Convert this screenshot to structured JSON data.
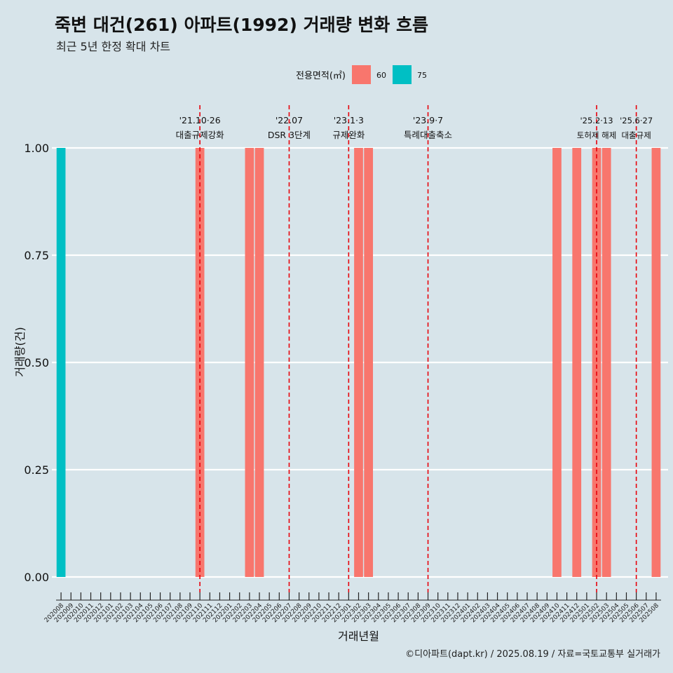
{
  "header": {
    "title": "죽변 대건(261) 아파트(1992) 거래량 변화 흐름",
    "subtitle": "최근 5년 한정 확대 차트"
  },
  "caption": "©디아파트(dapt.kr) / 2025.08.19 / 자료=국토교통부 실거래가",
  "colors": {
    "60": "#f8766d",
    "75": "#00bfc4",
    "background": "#d7e4ea",
    "gridline": "#ffffff",
    "event_line": "#e8000b"
  },
  "chart_data": {
    "type": "bar",
    "xlabel": "거래년월",
    "ylabel": "거래량(건)",
    "ylim": [
      0,
      1
    ],
    "yticks": [
      "0.00",
      "0.25",
      "0.50",
      "0.75",
      "1.00"
    ],
    "grid": true,
    "legend": {
      "title": "전용면적(㎡)",
      "position": "top",
      "entries": [
        "60",
        "75"
      ]
    },
    "categories": [
      "202008",
      "202009",
      "202010",
      "202011",
      "202012",
      "202101",
      "202102",
      "202103",
      "202104",
      "202105",
      "202106",
      "202107",
      "202108",
      "202109",
      "202110",
      "202111",
      "202112",
      "202201",
      "202202",
      "202203",
      "202204",
      "202205",
      "202206",
      "202207",
      "202208",
      "202209",
      "202210",
      "202211",
      "202212",
      "202301",
      "202302",
      "202303",
      "202304",
      "202305",
      "202306",
      "202307",
      "202308",
      "202309",
      "202310",
      "202311",
      "202312",
      "202401",
      "202402",
      "202403",
      "202404",
      "202405",
      "202406",
      "202407",
      "202408",
      "202409",
      "202410",
      "202411",
      "202412",
      "202501",
      "202502",
      "202503",
      "202504",
      "202505",
      "202506",
      "202507",
      "202508"
    ],
    "series": [
      {
        "name": "60",
        "points": [
          {
            "x": "202110",
            "y": 1
          },
          {
            "x": "202203",
            "y": 1
          },
          {
            "x": "202204",
            "y": 1
          },
          {
            "x": "202302",
            "y": 1
          },
          {
            "x": "202303",
            "y": 1
          },
          {
            "x": "202410",
            "y": 1
          },
          {
            "x": "202412",
            "y": 1
          },
          {
            "x": "202502",
            "y": 1
          },
          {
            "x": "202503",
            "y": 1
          },
          {
            "x": "202508",
            "y": 1
          }
        ]
      },
      {
        "name": "75",
        "points": [
          {
            "x": "202008",
            "y": 1
          }
        ]
      }
    ],
    "annotations": [
      {
        "line1": "'21.10·26",
        "line2": "대출규제강화",
        "x": "202110"
      },
      {
        "line1": "'22.07",
        "line2": "DSR 3단계",
        "x": "202207"
      },
      {
        "line1": "'23.1·3",
        "line2": "규제완화",
        "x": "202301"
      },
      {
        "line1": "'23.9·7",
        "line2": "특례대출축소",
        "x": "202309"
      },
      {
        "line1": "'25.2·13",
        "line2": "토허제 해제",
        "x": "202502"
      },
      {
        "line1": "'25.6·27",
        "line2": "대출규제",
        "x": "202506"
      }
    ]
  }
}
